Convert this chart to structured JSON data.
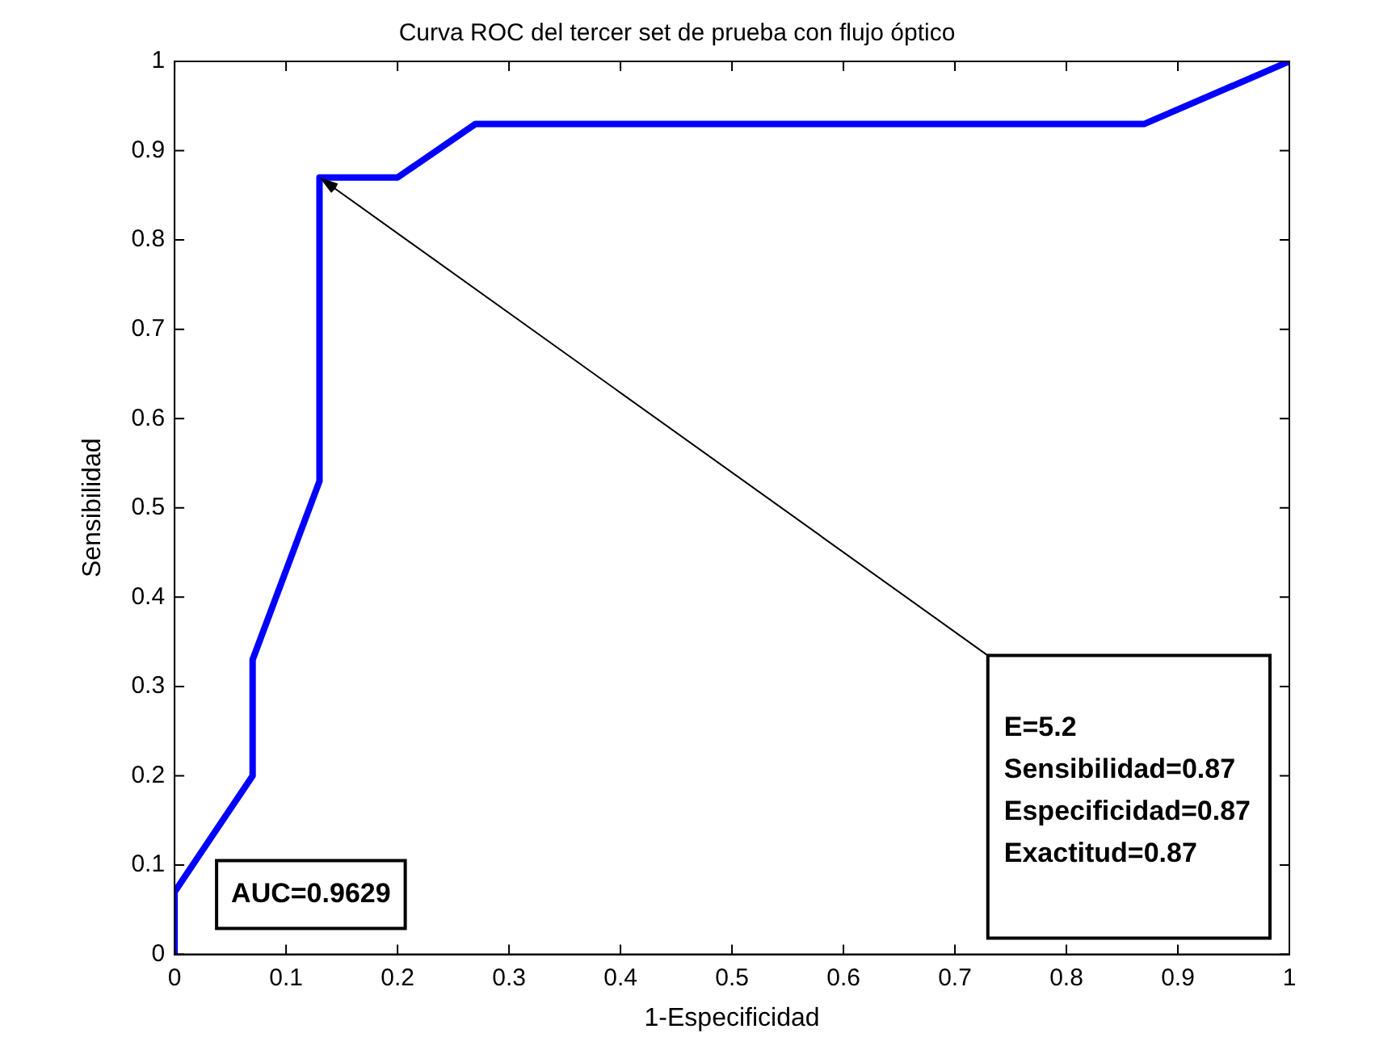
{
  "chart_data": {
    "type": "line",
    "title": "Curva ROC del tercer set de prueba con flujo óptico",
    "xlabel": "1-Especificidad",
    "ylabel": "Sensibilidad",
    "series": [
      {
        "color": "#0000ff",
        "x": [
          0,
          0,
          0.07,
          0.07,
          0.13,
          0.13,
          0.2,
          0.27,
          0.87,
          1
        ],
        "values": [
          0,
          0.07,
          0.2,
          0.33,
          0.53,
          0.87,
          0.87,
          0.93,
          0.93,
          1
        ]
      }
    ],
    "xlim": [
      0,
      1
    ],
    "ylim": [
      0,
      1
    ],
    "xticks": [
      0,
      0.1,
      0.2,
      0.3,
      0.4,
      0.5,
      0.6,
      0.7,
      0.8,
      0.9,
      1
    ],
    "yticks": [
      0,
      0.1,
      0.2,
      0.3,
      0.4,
      0.5,
      0.6,
      0.7,
      0.8,
      0.9,
      1
    ],
    "grid": false,
    "legend": false,
    "marker": "none",
    "line_style": "solid",
    "annotations": [
      "AUC=0.9629",
      "E=5.2\nSensibilidad=0.87\nEspecificidad=0.87\nExactitud=0.87"
    ]
  }
}
